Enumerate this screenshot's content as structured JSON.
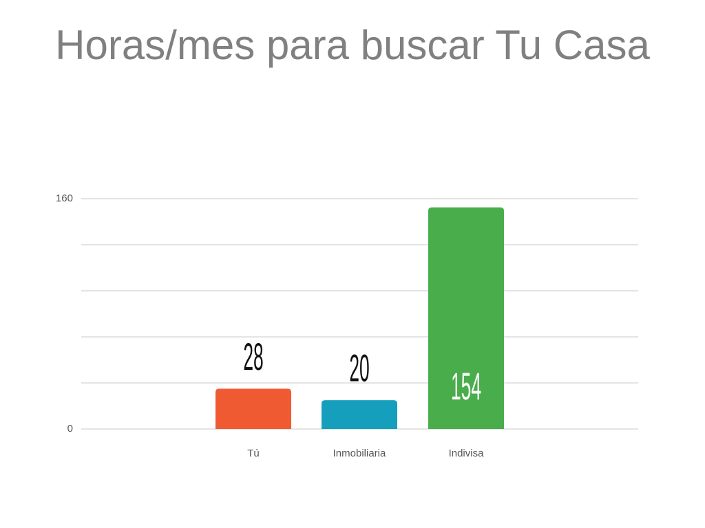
{
  "chart_data": {
    "type": "bar",
    "title": "Horas/mes para buscar Tu Casa",
    "categories": [
      "Tú",
      "Inmobiliaria",
      "Indivisa"
    ],
    "values": [
      28,
      20,
      154
    ],
    "colors": [
      "#f05a33",
      "#159fbd",
      "#4aad4c"
    ],
    "ylim": [
      0,
      160
    ],
    "yticks": [
      0,
      160
    ],
    "grid": true,
    "grid_lines": [
      0,
      32,
      64,
      96,
      128,
      160
    ]
  }
}
